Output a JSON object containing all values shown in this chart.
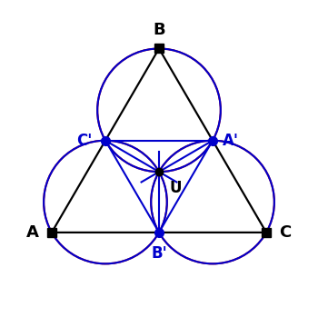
{
  "background_color": "#ffffff",
  "A": [
    0.08,
    0.2
  ],
  "B": [
    0.5,
    0.92
  ],
  "C": [
    0.92,
    0.2
  ],
  "t_Aprime": 0.5,
  "t_Bprime": 0.5,
  "t_Cprime": 0.5,
  "triangle_color": "#000000",
  "triangle_lw": 1.6,
  "red_circle_color": "#cc0000",
  "blue_circle_color": "#0000cc",
  "blue_line_color": "#0000cc",
  "red_lw": 1.5,
  "blue_lw": 1.5,
  "point_U_color": "#000000",
  "point_primed_color": "#0000cc",
  "sq_marker_size": 7,
  "dot_marker_size": 7,
  "U_dot_size": 6,
  "xlim": [
    -0.12,
    1.12
  ],
  "ylim": [
    -0.14,
    1.08
  ],
  "figw": 3.5,
  "figh": 3.6,
  "dpi": 100
}
